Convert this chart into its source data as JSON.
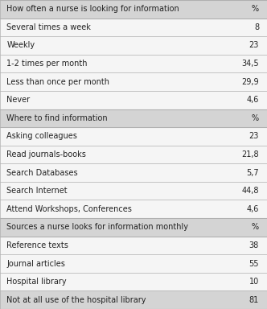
{
  "rows": [
    {
      "label": "How often a nurse is looking for information",
      "value": "%",
      "is_header": true
    },
    {
      "label": "Several times a week",
      "value": "8",
      "is_header": false
    },
    {
      "label": "Weekly",
      "value": "23",
      "is_header": false
    },
    {
      "label": "1-2 times per month",
      "value": "34,5",
      "is_header": false
    },
    {
      "label": "Less than once per month",
      "value": "29,9",
      "is_header": false
    },
    {
      "label": "Never",
      "value": "4,6",
      "is_header": false
    },
    {
      "label": "Where to find information",
      "value": "%",
      "is_header": true
    },
    {
      "label": "Asking colleagues",
      "value": "23",
      "is_header": false
    },
    {
      "label": "Read journals-books",
      "value": "21,8",
      "is_header": false
    },
    {
      "label": "Search Databases",
      "value": "5,7",
      "is_header": false
    },
    {
      "label": "Search Internet",
      "value": "44,8",
      "is_header": false
    },
    {
      "label": "Attend Workshops, Conferences",
      "value": "4,6",
      "is_header": false
    },
    {
      "label": "Sources a nurse looks for information monthly",
      "value": "%",
      "is_header": true
    },
    {
      "label": "Reference texts",
      "value": "38",
      "is_header": false
    },
    {
      "label": "Journal articles",
      "value": "55",
      "is_header": false
    },
    {
      "label": "Hospital library",
      "value": "10",
      "is_header": false
    },
    {
      "label": "Not at all use of the hospital library",
      "value": "81",
      "is_header": false
    }
  ],
  "header_bg": "#d4d4d4",
  "last_row_bg": "#d4d4d4",
  "white_bg": "#f5f5f5",
  "border_color": "#b0b0b0",
  "text_color": "#222222",
  "font_size": 7.0
}
